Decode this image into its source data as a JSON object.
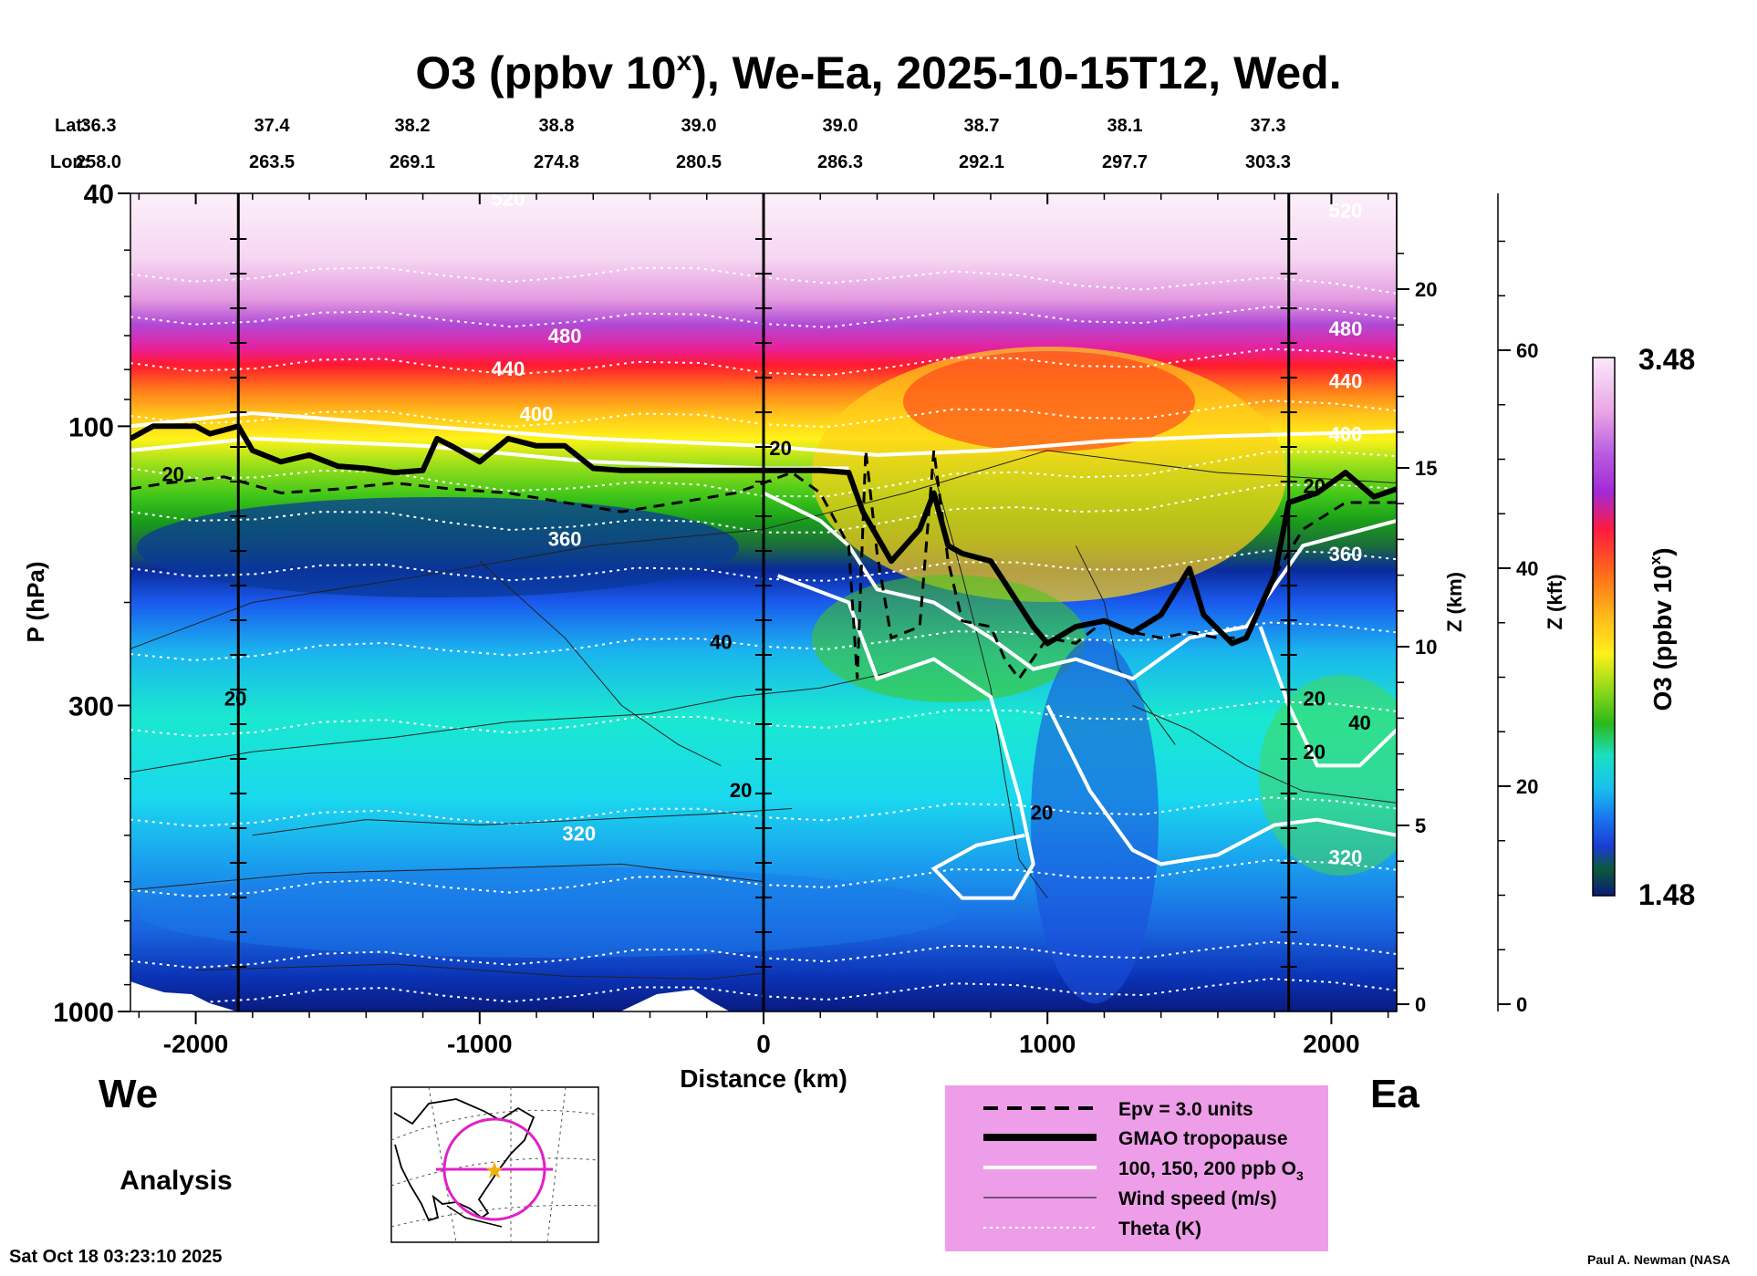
{
  "chart_data": {
    "type": "heatmap",
    "title_main": "O3 (ppbv 10",
    "title_sup": "x",
    "title_rest": "), We-Ea, 2025-10-15T12, Wed.",
    "lat_label": "Lat:",
    "lon_label": "Lon:",
    "lat_values": [
      "36.3",
      "37.4",
      "38.2",
      "38.8",
      "39.0",
      "39.0",
      "38.7",
      "38.1",
      "37.3"
    ],
    "lon_values": [
      "258.0",
      "263.5",
      "269.1",
      "274.8",
      "280.5",
      "286.3",
      "292.1",
      "297.7",
      "303.3"
    ],
    "xlabel": "Distance (km)",
    "ylabel": "P (hPa)",
    "x_ticks": [
      "-2000",
      "-1000",
      "0",
      "1000",
      "2000"
    ],
    "x_tick_values": [
      -2000,
      -1000,
      0,
      1000,
      2000
    ],
    "xlim": [
      -2230,
      2230
    ],
    "y_ticks": [
      "40",
      "100",
      "300",
      "1000"
    ],
    "y_tick_values": [
      40,
      100,
      300,
      1000
    ],
    "ylim": [
      40,
      1000
    ],
    "z_km_label": "Z (km)",
    "z_km_ticks": [
      "0",
      "5",
      "10",
      "15",
      "20"
    ],
    "z_kft_label": "Z (kft)",
    "z_kft_ticks": [
      "0",
      "20",
      "40",
      "60"
    ],
    "colorbar_label": "O3 (ppbv 10",
    "colorbar_label_sup": "x",
    "colorbar_label_end": ")",
    "colorbar_max": "3.48",
    "colorbar_min": "1.48",
    "west_label": "We",
    "east_label": "Ea",
    "analysis_label": "Analysis",
    "theta_labels": [
      "480",
      "440",
      "400",
      "360",
      "320",
      "480",
      "440",
      "400",
      "360",
      "320",
      "520",
      "520"
    ],
    "wind_labels": [
      "20",
      "20",
      "20",
      "40",
      "20",
      "20",
      "40",
      "20",
      "20",
      "20"
    ],
    "legend": [
      {
        "label": "Epv = 3.0 units",
        "style": "dashed"
      },
      {
        "label": "GMAO tropopause",
        "style": "thick"
      },
      {
        "label": "100, 150, 200 ppb O",
        "sub": "3",
        "style": "white"
      },
      {
        "label": "Wind speed (m/s)",
        "style": "thin"
      },
      {
        "label": "Theta (K)",
        "style": "dotted"
      }
    ],
    "tropopause_hpa": [
      [
        -2230,
        105
      ],
      [
        -2150,
        100
      ],
      [
        -2000,
        100
      ],
      [
        -1950,
        103
      ],
      [
        -1850,
        100
      ],
      [
        -1800,
        110
      ],
      [
        -1700,
        115
      ],
      [
        -1600,
        112
      ],
      [
        -1500,
        117
      ],
      [
        -1400,
        118
      ],
      [
        -1300,
        120
      ],
      [
        -1200,
        119
      ],
      [
        -1150,
        105
      ],
      [
        -1100,
        108
      ],
      [
        -1000,
        115
      ],
      [
        -900,
        105
      ],
      [
        -800,
        108
      ],
      [
        -700,
        108
      ],
      [
        -600,
        118
      ],
      [
        -500,
        119
      ],
      [
        -300,
        119
      ],
      [
        -100,
        119
      ],
      [
        0,
        119
      ],
      [
        200,
        119
      ],
      [
        300,
        120
      ],
      [
        350,
        140
      ],
      [
        450,
        170
      ],
      [
        550,
        150
      ],
      [
        600,
        130
      ],
      [
        650,
        160
      ],
      [
        700,
        165
      ],
      [
        800,
        170
      ],
      [
        850,
        185
      ],
      [
        950,
        220
      ],
      [
        1000,
        235
      ],
      [
        1100,
        220
      ],
      [
        1200,
        215
      ],
      [
        1300,
        225
      ],
      [
        1400,
        210
      ],
      [
        1500,
        175
      ],
      [
        1550,
        210
      ],
      [
        1650,
        235
      ],
      [
        1700,
        230
      ],
      [
        1800,
        180
      ],
      [
        1850,
        135
      ],
      [
        1950,
        130
      ],
      [
        2050,
        120
      ],
      [
        2150,
        132
      ],
      [
        2230,
        128
      ]
    ],
    "epv_hpa": [
      [
        -2230,
        128
      ],
      [
        -2100,
        125
      ],
      [
        -1900,
        122
      ],
      [
        -1700,
        130
      ],
      [
        -1500,
        128
      ],
      [
        -1300,
        125
      ],
      [
        -1100,
        128
      ],
      [
        -900,
        130
      ],
      [
        -700,
        135
      ],
      [
        -500,
        140
      ],
      [
        -300,
        135
      ],
      [
        -100,
        130
      ],
      [
        0,
        125
      ],
      [
        100,
        120
      ],
      [
        200,
        130
      ],
      [
        300,
        160
      ],
      [
        330,
        270
      ],
      [
        360,
        110
      ],
      [
        400,
        165
      ],
      [
        450,
        230
      ],
      [
        550,
        220
      ],
      [
        600,
        110
      ],
      [
        650,
        170
      ],
      [
        700,
        215
      ],
      [
        800,
        220
      ],
      [
        850,
        250
      ],
      [
        900,
        270
      ],
      [
        1000,
        230
      ],
      [
        1100,
        235
      ],
      [
        1200,
        215
      ],
      [
        1300,
        225
      ],
      [
        1400,
        230
      ],
      [
        1500,
        225
      ],
      [
        1600,
        230
      ],
      [
        1700,
        230
      ],
      [
        1800,
        180
      ],
      [
        1900,
        150
      ],
      [
        2050,
        135
      ],
      [
        2230,
        135
      ]
    ]
  }
}
